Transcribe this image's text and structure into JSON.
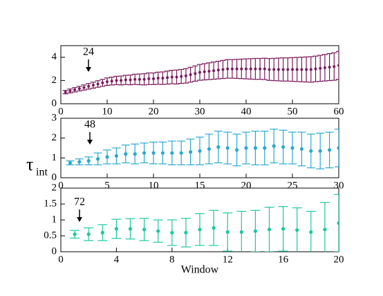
{
  "chart_data": [
    {
      "type": "errorbar",
      "annotation": "24",
      "color": "#7a1a5a",
      "xlim": [
        0,
        60
      ],
      "xticks": [
        0,
        10,
        20,
        30,
        40,
        50,
        60
      ],
      "ylim": [
        0,
        5
      ],
      "yticks": [
        0,
        2,
        4
      ],
      "x": [
        1,
        2,
        3,
        4,
        5,
        6,
        7,
        8,
        9,
        10,
        11,
        12,
        13,
        14,
        15,
        16,
        17,
        18,
        19,
        20,
        21,
        22,
        23,
        24,
        25,
        26,
        27,
        28,
        29,
        30,
        31,
        32,
        33,
        34,
        35,
        36,
        37,
        38,
        39,
        40,
        41,
        42,
        43,
        44,
        45,
        46,
        47,
        48,
        49,
        50,
        51,
        52,
        53,
        54,
        55,
        56,
        57,
        58,
        59,
        60
      ],
      "values": [
        1.0,
        1.1,
        1.2,
        1.3,
        1.4,
        1.5,
        1.6,
        1.7,
        1.8,
        1.9,
        1.95,
        2.0,
        2.0,
        2.05,
        2.05,
        2.1,
        2.1,
        2.1,
        2.15,
        2.15,
        2.2,
        2.2,
        2.25,
        2.3,
        2.3,
        2.35,
        2.4,
        2.5,
        2.6,
        2.7,
        2.75,
        2.8,
        2.85,
        2.9,
        2.95,
        3.0,
        3.0,
        3.0,
        3.0,
        3.0,
        3.0,
        3.0,
        3.0,
        3.0,
        2.95,
        2.95,
        2.95,
        2.95,
        2.95,
        2.95,
        2.95,
        2.95,
        2.95,
        2.95,
        3.0,
        3.05,
        3.1,
        3.15,
        3.2,
        3.3
      ],
      "errors": [
        0.15,
        0.17,
        0.19,
        0.2,
        0.22,
        0.24,
        0.26,
        0.28,
        0.3,
        0.32,
        0.34,
        0.36,
        0.38,
        0.4,
        0.42,
        0.44,
        0.46,
        0.48,
        0.5,
        0.5,
        0.52,
        0.54,
        0.56,
        0.58,
        0.6,
        0.6,
        0.62,
        0.64,
        0.66,
        0.68,
        0.7,
        0.72,
        0.74,
        0.76,
        0.78,
        0.8,
        0.8,
        0.82,
        0.84,
        0.86,
        0.88,
        0.9,
        0.9,
        0.92,
        0.94,
        0.96,
        0.98,
        1.0,
        1.0,
        1.02,
        1.04,
        1.06,
        1.08,
        1.1,
        1.1,
        1.12,
        1.14,
        1.16,
        1.18,
        1.2
      ]
    },
    {
      "type": "errorbar",
      "annotation": "48",
      "color": "#2aa8d0",
      "ylabel": "τ",
      "ylabel_subscript": "int",
      "xlim": [
        0,
        30
      ],
      "xticks": [
        0,
        5,
        10,
        15,
        20,
        25,
        30
      ],
      "ylim": [
        0,
        3
      ],
      "yticks": [
        0,
        1,
        2,
        3
      ],
      "x": [
        1,
        2,
        3,
        4,
        5,
        6,
        7,
        8,
        9,
        10,
        11,
        12,
        13,
        14,
        15,
        16,
        17,
        18,
        19,
        20,
        21,
        22,
        23,
        24,
        25,
        26,
        27,
        28,
        29,
        30
      ],
      "values": [
        0.75,
        0.8,
        0.85,
        0.95,
        1.05,
        1.1,
        1.2,
        1.2,
        1.25,
        1.25,
        1.25,
        1.25,
        1.25,
        1.3,
        1.35,
        1.45,
        1.55,
        1.5,
        1.4,
        1.5,
        1.5,
        1.5,
        1.6,
        1.55,
        1.5,
        1.45,
        1.35,
        1.35,
        1.4,
        1.5
      ],
      "errors": [
        0.1,
        0.15,
        0.2,
        0.3,
        0.35,
        0.4,
        0.45,
        0.5,
        0.5,
        0.55,
        0.55,
        0.6,
        0.6,
        0.65,
        0.7,
        0.75,
        0.8,
        0.8,
        0.8,
        0.8,
        0.85,
        0.85,
        0.85,
        0.85,
        0.8,
        0.85,
        0.85,
        0.9,
        0.9,
        0.95
      ]
    },
    {
      "type": "errorbar",
      "annotation": "72",
      "color": "#1ac8a0",
      "xlabel": "Window",
      "xlim": [
        0,
        20
      ],
      "xticks": [
        0,
        4,
        8,
        12,
        16,
        20
      ],
      "ylim": [
        0,
        2
      ],
      "yticks": [
        0,
        0.5,
        1,
        1.5,
        2
      ],
      "x": [
        1,
        2,
        3,
        4,
        5,
        6,
        7,
        8,
        9,
        10,
        11,
        12,
        13,
        14,
        15,
        16,
        17,
        18,
        19,
        20
      ],
      "values": [
        0.55,
        0.55,
        0.6,
        0.72,
        0.72,
        0.7,
        0.65,
        0.6,
        0.6,
        0.7,
        0.75,
        0.62,
        0.62,
        0.65,
        0.7,
        0.72,
        0.68,
        0.62,
        0.7,
        0.9
      ],
      "errors": [
        0.12,
        0.2,
        0.25,
        0.3,
        0.32,
        0.35,
        0.35,
        0.4,
        0.45,
        0.5,
        0.55,
        0.6,
        0.65,
        0.65,
        0.7,
        0.7,
        0.7,
        0.65,
        0.85,
        0.9
      ]
    }
  ]
}
